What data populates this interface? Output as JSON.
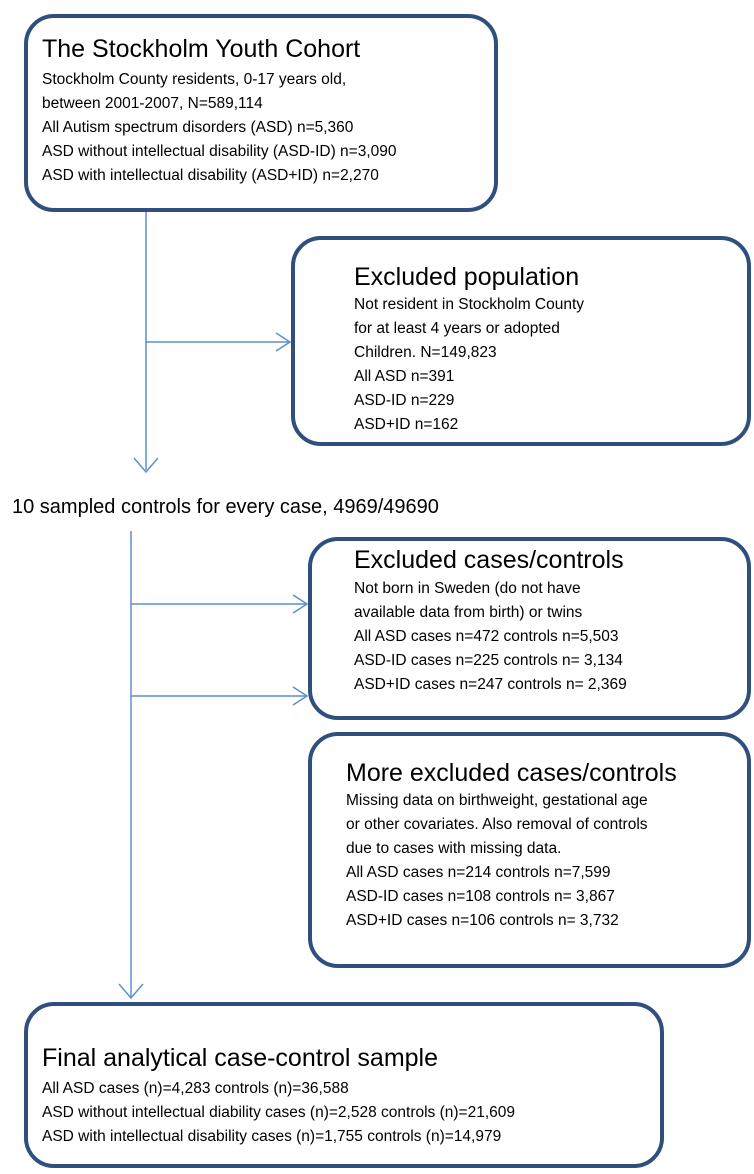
{
  "boxes": {
    "cohort": {
      "title": "The Stockholm Youth Cohort",
      "lines": [
        "Stockholm County residents, 0-17 years old,",
        "between 2001-2007, N=589,114",
        "All Autism spectrum disorders (ASD) n=5,360",
        "ASD without intellectual disability (ASD-ID) n=3,090",
        "ASD with intellectual disability (ASD+ID) n=2,270"
      ]
    },
    "excluded_population": {
      "title": "Excluded population",
      "lines": [
        "Not resident in Stockholm County",
        "for at least 4 years or adopted",
        "Children. N=149,823",
        "All ASD n=391",
        "ASD-ID n=229",
        "ASD+ID n=162"
      ]
    },
    "excluded_cases_controls": {
      "title": "Excluded cases/controls",
      "lines": [
        "Not born in Sweden (do not have",
        "available data from birth) or twins",
        "All ASD cases n=472  controls n=5,503",
        "ASD-ID cases n=225 controls  n= 3,134",
        "ASD+ID cases n=247 controls n= 2,369"
      ]
    },
    "more_excluded": {
      "title": "More excluded cases/controls",
      "lines": [
        "Missing data on birthweight, gestational age",
        "or other covariates. Also removal of controls",
        "due to cases with missing data.",
        "All ASD cases n=214  controls n=7,599",
        "ASD-ID cases n=108 controls  n= 3,867",
        "ASD+ID cases n=106 controls n= 3,732"
      ]
    },
    "final_sample": {
      "title": "Final analytical case-control sample",
      "lines": [
        "All ASD cases (n)=4,283  controls (n)=36,588",
        "ASD without intellectual diability cases (n)=2,528  controls (n)=21,609",
        "ASD with intellectual disability  cases (n)=1,755  controls (n)=14,979"
      ]
    }
  },
  "sampled_controls_text": "10 sampled controls for every case, 4969/49690",
  "colors": {
    "box_border": "#2f4f7f",
    "arrow": "#5b8fd0"
  }
}
